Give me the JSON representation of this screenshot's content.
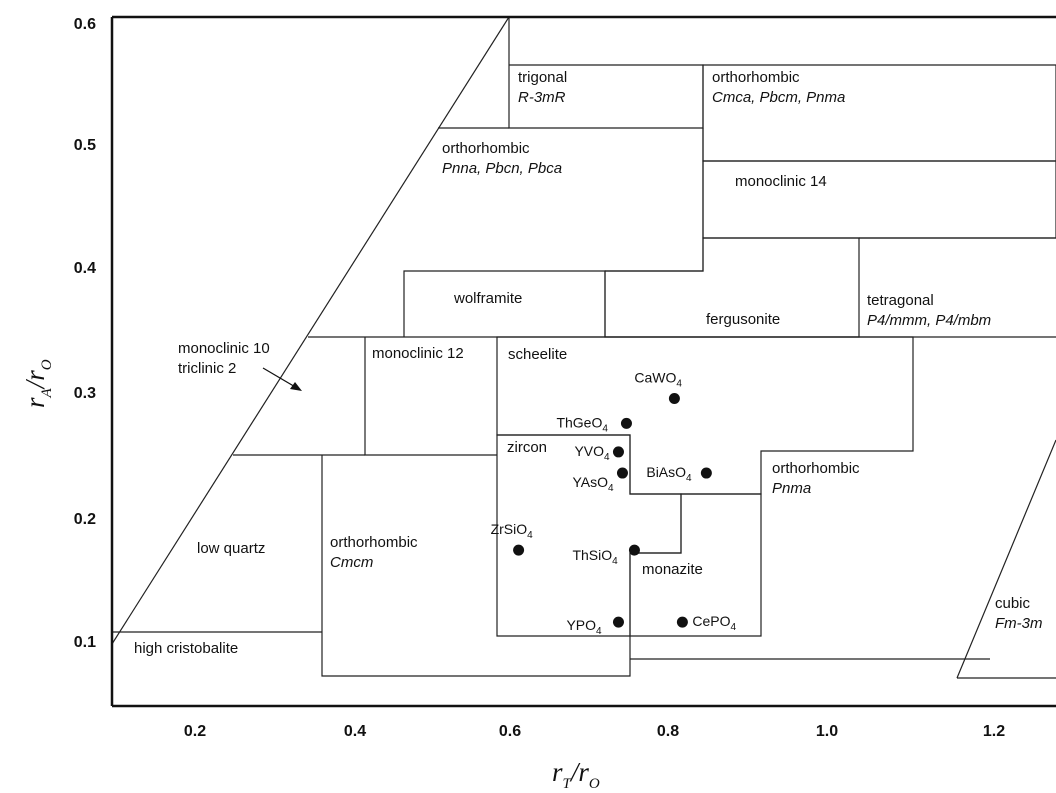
{
  "chart_data": {
    "type": "scatter",
    "xlabel": "rT/rO",
    "ylabel": "rA/rO",
    "xlim": [
      0.1,
      1.3
    ],
    "ylim": [
      0.05,
      0.6
    ],
    "x_ticks": [
      "0.2",
      "0.4",
      "0.6",
      "0.8",
      "1.0",
      "1.2"
    ],
    "y_ticks": [
      "0.6",
      "0.5",
      "0.4",
      "0.3",
      "0.2",
      "0.1"
    ],
    "grid": false,
    "legend": "none",
    "points": [
      {
        "label": "CaWO4",
        "base": "CaWO",
        "subscript": "4",
        "x": 0.8,
        "y": 0.3
      },
      {
        "label": "ThGeO4",
        "base": "ThGeO",
        "subscript": "4",
        "x": 0.74,
        "y": 0.28
      },
      {
        "label": "YVO4",
        "base": "YVO",
        "subscript": "4",
        "x": 0.73,
        "y": 0.257
      },
      {
        "label": "YAsO4",
        "base": "YAsO",
        "subscript": "4",
        "x": 0.735,
        "y": 0.24
      },
      {
        "label": "BiAsO4",
        "base": "BiAsO",
        "subscript": "4",
        "x": 0.84,
        "y": 0.24
      },
      {
        "label": "ZrSiO4",
        "base": "ZrSiO",
        "subscript": "4",
        "x": 0.605,
        "y": 0.178
      },
      {
        "label": "ThSiO4",
        "base": "ThSiO",
        "subscript": "4",
        "x": 0.75,
        "y": 0.178
      },
      {
        "label": "YPO4",
        "base": "YPO",
        "subscript": "4",
        "x": 0.73,
        "y": 0.12
      },
      {
        "label": "CePO4",
        "base": "CePO",
        "subscript": "4",
        "x": 0.81,
        "y": 0.12
      }
    ],
    "regions": [
      {
        "name": "trigonal",
        "group": "R-3mR",
        "color": "#ffffff"
      },
      {
        "name": "orthorhombic",
        "group": "Cmca, Pbcm, Pnma",
        "color": "#f77fa0"
      },
      {
        "name": "orthorhombic",
        "group": "Pnna, Pbcn, Pbca",
        "color": "#ffffff"
      },
      {
        "name": "monoclinic 14",
        "group": "",
        "color": "#e4fc8c"
      },
      {
        "name": "wolframite",
        "group": "",
        "color": "#ffffff"
      },
      {
        "name": "fergusonite",
        "group": "",
        "color": "#f6c9ac"
      },
      {
        "name": "tetragonal",
        "group": "P4/mmm, P4/mbm",
        "color": "#ffffff"
      },
      {
        "name": "monoclinic 12",
        "group": "",
        "color": "#ffffff"
      },
      {
        "name": "scheelite",
        "group": "",
        "color": "#28a8e1"
      },
      {
        "name": "zircon",
        "group": "",
        "color": "#e63c3c"
      },
      {
        "name": "orthorhombic",
        "group": "Pnma",
        "color": "#ffffff"
      },
      {
        "name": "monazite",
        "group": "",
        "color": "#f3d07a"
      },
      {
        "name": "orthorhombic",
        "group": "Cmcm",
        "color": "#ffffff"
      },
      {
        "name": "low quartz",
        "group": "",
        "color": "#ffffff"
      },
      {
        "name": "high cristobalite",
        "group": "",
        "color": "#ffffff"
      },
      {
        "name": "cubic",
        "group": "Fm-3m",
        "color": "#ffffff"
      }
    ],
    "annotations": {
      "mono10_line1": "monoclinic 10",
      "mono10_line2": "triclinic 2"
    }
  }
}
